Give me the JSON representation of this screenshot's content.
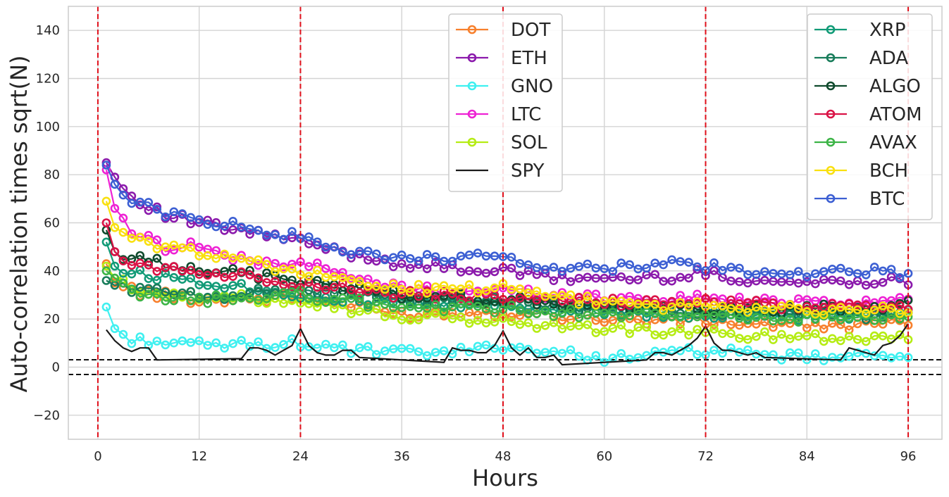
{
  "chart_data": {
    "type": "line",
    "title": "",
    "xlabel": "Hours",
    "ylabel": "Auto-correlation times sqrt(N)",
    "xlim": [
      -3.5,
      100
    ],
    "ylim": [
      -30,
      150
    ],
    "xticks": [
      0,
      12,
      24,
      36,
      48,
      60,
      72,
      84,
      96
    ],
    "yticks": [
      -20,
      0,
      20,
      40,
      60,
      80,
      100,
      120,
      140
    ],
    "xtick_labels": [
      "0",
      "12",
      "24",
      "36",
      "48",
      "60",
      "72",
      "84",
      "96"
    ],
    "ytick_labels": [
      "−20",
      "0",
      "20",
      "40",
      "60",
      "80",
      "100",
      "120",
      "140"
    ],
    "grid": true,
    "vlines": [
      0,
      24,
      48,
      72,
      96
    ],
    "vline_color": "#e0101b",
    "hlines": [
      3.05,
      -3.05
    ],
    "hline_color": "#000000",
    "lag_range": [
      1,
      96
    ],
    "series": [
      {
        "name": "DOT",
        "color": "#f7802d",
        "marker": true,
        "anchors": [
          [
            1,
            43
          ],
          [
            2,
            35
          ],
          [
            5,
            31
          ],
          [
            12,
            28
          ],
          [
            24,
            29
          ],
          [
            36,
            22
          ],
          [
            48,
            23
          ],
          [
            60,
            20
          ],
          [
            72,
            19
          ],
          [
            84,
            17
          ],
          [
            96,
            18
          ]
        ]
      },
      {
        "name": "ETH",
        "color": "#8b1aac",
        "marker": true,
        "anchors": [
          [
            1,
            85
          ],
          [
            2,
            79
          ],
          [
            4,
            71
          ],
          [
            8,
            63
          ],
          [
            12,
            60
          ],
          [
            16,
            57
          ],
          [
            20,
            55
          ],
          [
            24,
            52
          ],
          [
            30,
            47
          ],
          [
            36,
            43
          ],
          [
            42,
            41
          ],
          [
            48,
            40
          ],
          [
            54,
            37
          ],
          [
            60,
            37
          ],
          [
            66,
            37
          ],
          [
            72,
            39
          ],
          [
            78,
            36
          ],
          [
            84,
            35
          ],
          [
            90,
            36
          ],
          [
            96,
            36
          ]
        ]
      },
      {
        "name": "GNO",
        "color": "#3ff0f0",
        "marker": true,
        "anchors": [
          [
            1,
            25
          ],
          [
            2,
            16
          ],
          [
            3,
            12
          ],
          [
            6,
            11
          ],
          [
            12,
            9
          ],
          [
            24,
            10
          ],
          [
            30,
            7
          ],
          [
            36,
            6
          ],
          [
            42,
            6
          ],
          [
            48,
            9
          ],
          [
            54,
            6
          ],
          [
            60,
            4
          ],
          [
            66,
            5
          ],
          [
            72,
            7
          ],
          [
            78,
            5
          ],
          [
            84,
            4
          ],
          [
            90,
            4
          ],
          [
            96,
            6
          ]
        ]
      },
      {
        "name": "LTC",
        "color": "#ee22d4",
        "marker": true,
        "anchors": [
          [
            1,
            82
          ],
          [
            2,
            66
          ],
          [
            4,
            57
          ],
          [
            8,
            50
          ],
          [
            12,
            51
          ],
          [
            16,
            45
          ],
          [
            20,
            43
          ],
          [
            24,
            44
          ],
          [
            30,
            37
          ],
          [
            36,
            33
          ],
          [
            42,
            31
          ],
          [
            48,
            32
          ],
          [
            54,
            30
          ],
          [
            60,
            29
          ],
          [
            66,
            28
          ],
          [
            72,
            29
          ],
          [
            78,
            27
          ],
          [
            84,
            28
          ],
          [
            90,
            27
          ],
          [
            96,
            28
          ]
        ]
      },
      {
        "name": "SOL",
        "color": "#b5ec14",
        "marker": true,
        "anchors": [
          [
            1,
            42
          ],
          [
            2,
            37
          ],
          [
            4,
            33
          ],
          [
            12,
            29
          ],
          [
            24,
            28
          ],
          [
            30,
            24
          ],
          [
            36,
            21
          ],
          [
            42,
            20
          ],
          [
            48,
            19
          ],
          [
            54,
            17
          ],
          [
            60,
            16
          ],
          [
            66,
            15
          ],
          [
            72,
            14
          ],
          [
            78,
            13
          ],
          [
            84,
            13
          ],
          [
            90,
            12
          ],
          [
            96,
            13
          ]
        ]
      },
      {
        "name": "SPY",
        "color": "#1a1a1a",
        "marker": false,
        "points": [
          [
            1,
            15.5
          ],
          [
            2,
            11
          ],
          [
            3,
            8
          ],
          [
            4,
            6.5
          ],
          [
            5,
            8
          ],
          [
            6,
            8
          ],
          [
            7,
            3
          ],
          [
            17,
            3.5
          ],
          [
            18,
            8
          ],
          [
            19,
            8
          ],
          [
            20,
            7
          ],
          [
            21,
            5
          ],
          [
            22,
            7
          ],
          [
            23,
            9
          ],
          [
            24,
            16
          ],
          [
            25,
            9
          ],
          [
            26,
            6
          ],
          [
            27,
            5
          ],
          [
            28,
            5
          ],
          [
            29,
            7
          ],
          [
            30,
            7
          ],
          [
            31,
            4
          ],
          [
            41,
            2
          ],
          [
            42,
            8
          ],
          [
            43,
            7
          ],
          [
            44,
            7
          ],
          [
            45,
            6
          ],
          [
            46,
            6
          ],
          [
            47,
            9
          ],
          [
            48,
            15
          ],
          [
            49,
            8
          ],
          [
            50,
            5
          ],
          [
            51,
            8
          ],
          [
            52,
            4
          ],
          [
            53,
            4
          ],
          [
            54,
            5
          ],
          [
            55,
            1
          ],
          [
            65,
            3
          ],
          [
            66,
            6
          ],
          [
            67,
            6
          ],
          [
            68,
            5
          ],
          [
            69,
            7
          ],
          [
            70,
            9
          ],
          [
            71,
            12
          ],
          [
            72,
            17
          ],
          [
            73,
            10
          ],
          [
            74,
            7
          ],
          [
            75,
            7
          ],
          [
            76,
            6
          ],
          [
            77,
            5
          ],
          [
            78,
            6
          ],
          [
            79,
            4
          ],
          [
            88,
            3
          ],
          [
            89,
            8
          ],
          [
            90,
            7
          ],
          [
            91,
            6
          ],
          [
            92,
            5
          ],
          [
            93,
            9
          ],
          [
            94,
            10
          ],
          [
            95,
            13
          ],
          [
            96,
            18
          ]
        ]
      },
      {
        "name": "XRP",
        "color": "#119b77",
        "marker": true,
        "anchors": [
          [
            1,
            52
          ],
          [
            2,
            42
          ],
          [
            4,
            39
          ],
          [
            12,
            36
          ],
          [
            24,
            30
          ],
          [
            36,
            26
          ],
          [
            48,
            26
          ],
          [
            60,
            23
          ],
          [
            72,
            22
          ],
          [
            84,
            21
          ],
          [
            96,
            22
          ]
        ]
      },
      {
        "name": "ADA",
        "color": "#187c5a",
        "marker": true,
        "anchors": [
          [
            1,
            36
          ],
          [
            2,
            34
          ],
          [
            6,
            32
          ],
          [
            12,
            29
          ],
          [
            24,
            33
          ],
          [
            36,
            28
          ],
          [
            48,
            27
          ],
          [
            60,
            24
          ],
          [
            72,
            23
          ],
          [
            84,
            22
          ],
          [
            96,
            21
          ]
        ]
      },
      {
        "name": "ALGO",
        "color": "#0f4a2d",
        "marker": true,
        "anchors": [
          [
            1,
            57
          ],
          [
            2,
            48
          ],
          [
            4,
            45
          ],
          [
            8,
            43
          ],
          [
            12,
            41
          ],
          [
            24,
            36
          ],
          [
            36,
            30
          ],
          [
            48,
            28
          ],
          [
            60,
            25
          ],
          [
            72,
            24
          ],
          [
            84,
            24
          ],
          [
            96,
            26
          ]
        ]
      },
      {
        "name": "ATOM",
        "color": "#da1346",
        "marker": true,
        "anchors": [
          [
            1,
            60
          ],
          [
            2,
            48
          ],
          [
            4,
            42
          ],
          [
            8,
            41
          ],
          [
            12,
            40
          ],
          [
            24,
            35
          ],
          [
            36,
            30
          ],
          [
            48,
            29
          ],
          [
            60,
            27
          ],
          [
            72,
            27
          ],
          [
            84,
            25
          ],
          [
            96,
            25
          ]
        ]
      },
      {
        "name": "AVAX",
        "color": "#3cb446",
        "marker": true,
        "anchors": [
          [
            1,
            40
          ],
          [
            3,
            34
          ],
          [
            5,
            29
          ],
          [
            12,
            28
          ],
          [
            24,
            30
          ],
          [
            36,
            25
          ],
          [
            48,
            24
          ],
          [
            60,
            22
          ],
          [
            72,
            21
          ],
          [
            84,
            20
          ],
          [
            96,
            20
          ]
        ]
      },
      {
        "name": "BCH",
        "color": "#f9e00f",
        "marker": true,
        "anchors": [
          [
            1,
            69
          ],
          [
            2,
            58
          ],
          [
            4,
            53
          ],
          [
            8,
            50
          ],
          [
            12,
            48
          ],
          [
            16,
            46
          ],
          [
            20,
            42
          ],
          [
            24,
            40
          ],
          [
            30,
            35
          ],
          [
            36,
            33
          ],
          [
            42,
            32
          ],
          [
            48,
            33
          ],
          [
            54,
            29
          ],
          [
            60,
            27
          ],
          [
            66,
            25
          ],
          [
            72,
            26
          ],
          [
            78,
            24
          ],
          [
            84,
            24
          ],
          [
            90,
            23
          ],
          [
            96,
            24
          ]
        ]
      },
      {
        "name": "BTC",
        "color": "#3c5fd3",
        "marker": true,
        "anchors": [
          [
            1,
            84
          ],
          [
            2,
            76
          ],
          [
            4,
            70
          ],
          [
            8,
            64
          ],
          [
            12,
            61
          ],
          [
            16,
            59
          ],
          [
            20,
            56
          ],
          [
            24,
            54
          ],
          [
            30,
            47
          ],
          [
            36,
            46
          ],
          [
            42,
            44
          ],
          [
            48,
            47
          ],
          [
            54,
            41
          ],
          [
            60,
            41
          ],
          [
            66,
            43
          ],
          [
            72,
            42
          ],
          [
            78,
            39
          ],
          [
            84,
            38
          ],
          [
            90,
            40
          ],
          [
            96,
            39
          ]
        ]
      }
    ],
    "legend_left": [
      "DOT",
      "ETH",
      "GNO",
      "LTC",
      "SOL",
      "SPY"
    ],
    "legend_right": [
      "XRP",
      "ADA",
      "ALGO",
      "ATOM",
      "AVAX",
      "BCH",
      "BTC"
    ],
    "legend_left_placement": "upper-center",
    "legend_right_placement": "upper-right"
  }
}
